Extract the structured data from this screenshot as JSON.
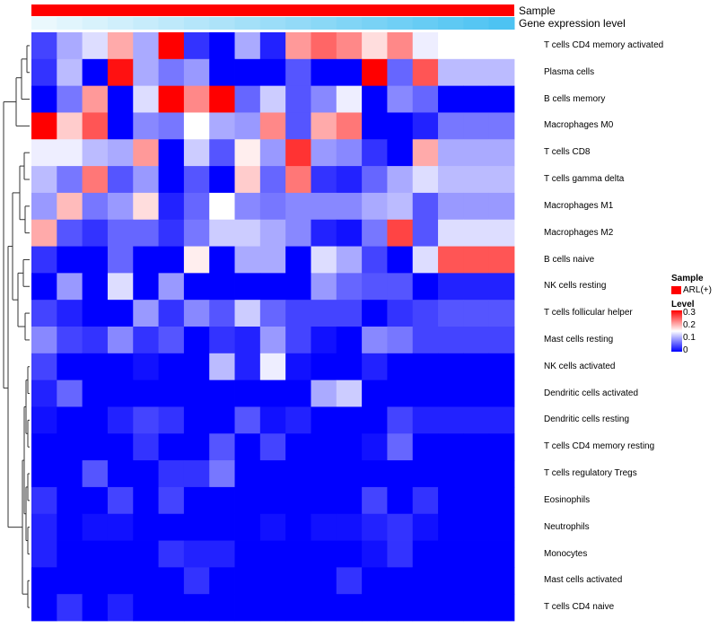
{
  "chart_data": {
    "type": "heatmap",
    "title": "",
    "annotations": [
      {
        "name": "Sample",
        "colors": [
          "#ff0000"
        ]
      },
      {
        "name": "Gene expression level",
        "colors": [
          "#ffffff",
          "#4dc3f2"
        ]
      }
    ],
    "rows": [
      "T cells CD4 memory activated",
      "Plasma cells",
      "B cells memory",
      "Macrophages M0",
      "T cells CD8",
      "T cells gamma delta",
      "Macrophages M1",
      "Macrophages M2",
      "B cells naive",
      "NK cells resting",
      "T cells follicular helper",
      "Mast cells resting",
      "NK cells activated",
      "Dendritic cells activated",
      "Dendritic cells resting",
      "T cells CD4 memory resting",
      "T cells regulatory  Tregs",
      "Eosinophils",
      "Neutrophils",
      "Monocytes",
      "Mast cells activated",
      "T cells CD4 naive"
    ],
    "n_columns": 19,
    "values": [
      [
        0.04,
        0.1,
        0.13,
        0.2,
        0.1,
        0.3,
        0.03,
        0.0,
        0.1,
        0.02,
        0.21,
        0.24,
        0.22,
        0.17,
        0.22,
        0.14,
        0.15,
        0.15,
        0.15
      ],
      [
        0.03,
        0.11,
        0.0,
        0.29,
        0.1,
        0.07,
        0.09,
        0.0,
        0.0,
        0.0,
        0.05,
        0.0,
        0.0,
        0.3,
        0.06,
        0.25,
        0.11,
        0.11,
        0.11
      ],
      [
        0.0,
        0.07,
        0.21,
        0.0,
        0.13,
        0.3,
        0.22,
        0.3,
        0.06,
        0.12,
        0.05,
        0.08,
        0.14,
        0.0,
        0.08,
        0.06,
        0.0,
        0.0,
        0.0
      ],
      [
        0.3,
        0.18,
        0.25,
        0.0,
        0.08,
        0.07,
        0.15,
        0.1,
        0.09,
        0.22,
        0.05,
        0.2,
        0.23,
        0.0,
        0.0,
        0.02,
        0.07,
        0.07,
        0.07
      ],
      [
        0.14,
        0.14,
        0.11,
        0.1,
        0.21,
        0.0,
        0.12,
        0.05,
        0.16,
        0.09,
        0.27,
        0.09,
        0.08,
        0.03,
        0.0,
        0.2,
        0.1,
        0.1,
        0.1
      ],
      [
        0.11,
        0.07,
        0.23,
        0.05,
        0.09,
        0.0,
        0.05,
        0.0,
        0.18,
        0.06,
        0.23,
        0.03,
        0.02,
        0.06,
        0.1,
        0.13,
        0.11,
        0.11,
        0.11
      ],
      [
        0.09,
        0.19,
        0.07,
        0.09,
        0.17,
        0.02,
        0.06,
        0.15,
        0.08,
        0.07,
        0.08,
        0.08,
        0.08,
        0.1,
        0.11,
        0.05,
        0.09,
        0.09,
        0.09
      ],
      [
        0.2,
        0.05,
        0.03,
        0.06,
        0.06,
        0.03,
        0.07,
        0.12,
        0.12,
        0.1,
        0.08,
        0.02,
        0.01,
        0.07,
        0.26,
        0.05,
        0.13,
        0.13,
        0.13
      ],
      [
        0.03,
        0.0,
        0.0,
        0.06,
        0.0,
        0.0,
        0.16,
        0.0,
        0.1,
        0.1,
        0.0,
        0.13,
        0.1,
        0.04,
        0.0,
        0.13,
        0.25,
        0.25,
        0.25
      ],
      [
        0.0,
        0.09,
        0.0,
        0.13,
        0.0,
        0.09,
        0.0,
        0.0,
        0.0,
        0.0,
        0.0,
        0.09,
        0.06,
        0.05,
        0.05,
        0.0,
        0.02,
        0.02,
        0.02
      ],
      [
        0.04,
        0.02,
        0.0,
        0.0,
        0.09,
        0.03,
        0.08,
        0.05,
        0.12,
        0.06,
        0.04,
        0.04,
        0.04,
        0.0,
        0.03,
        0.04,
        0.05,
        0.05,
        0.05
      ],
      [
        0.08,
        0.04,
        0.03,
        0.08,
        0.03,
        0.05,
        0.0,
        0.03,
        0.02,
        0.09,
        0.04,
        0.01,
        0.0,
        0.08,
        0.07,
        0.04,
        0.04,
        0.04,
        0.04
      ],
      [
        0.04,
        0.0,
        0.0,
        0.0,
        0.01,
        0.0,
        0.0,
        0.11,
        0.02,
        0.14,
        0.01,
        0.0,
        0.0,
        0.02,
        0.0,
        0.0,
        0.0,
        0.0,
        0.0
      ],
      [
        0.02,
        0.06,
        0.0,
        0.0,
        0.0,
        0.0,
        0.0,
        0.0,
        0.0,
        0.0,
        0.0,
        0.1,
        0.12,
        0.0,
        0.0,
        0.0,
        0.0,
        0.0,
        0.0
      ],
      [
        0.01,
        0.0,
        0.0,
        0.02,
        0.04,
        0.03,
        0.0,
        0.0,
        0.05,
        0.01,
        0.02,
        0.0,
        0.0,
        0.0,
        0.04,
        0.02,
        0.02,
        0.02,
        0.02
      ],
      [
        0.0,
        0.0,
        0.0,
        0.0,
        0.03,
        0.0,
        0.0,
        0.05,
        0.0,
        0.04,
        0.0,
        0.0,
        0.0,
        0.01,
        0.06,
        0.0,
        0.0,
        0.0,
        0.0
      ],
      [
        0.0,
        0.0,
        0.05,
        0.0,
        0.0,
        0.03,
        0.03,
        0.07,
        0.0,
        0.0,
        0.0,
        0.0,
        0.0,
        0.0,
        0.0,
        0.0,
        0.0,
        0.0,
        0.0
      ],
      [
        0.03,
        0.0,
        0.0,
        0.04,
        0.0,
        0.04,
        0.0,
        0.0,
        0.0,
        0.0,
        0.0,
        0.0,
        0.0,
        0.04,
        0.0,
        0.03,
        0.0,
        0.0,
        0.0
      ],
      [
        0.02,
        0.0,
        0.01,
        0.01,
        0.0,
        0.0,
        0.0,
        0.0,
        0.0,
        0.01,
        0.0,
        0.01,
        0.01,
        0.02,
        0.03,
        0.01,
        0.0,
        0.0,
        0.0
      ],
      [
        0.02,
        0.0,
        0.0,
        0.0,
        0.0,
        0.03,
        0.02,
        0.02,
        0.0,
        0.0,
        0.0,
        0.0,
        0.0,
        0.01,
        0.03,
        0.0,
        0.0,
        0.0,
        0.0
      ],
      [
        0.0,
        0.0,
        0.0,
        0.0,
        0.0,
        0.0,
        0.03,
        0.0,
        0.0,
        0.0,
        0.0,
        0.0,
        0.03,
        0.0,
        0.0,
        0.0,
        0.0,
        0.0,
        0.0
      ],
      [
        0.0,
        0.03,
        0.0,
        0.02,
        0.0,
        0.0,
        0.0,
        0.0,
        0.0,
        0.0,
        0.0,
        0.0,
        0.0,
        0.0,
        0.0,
        0.0,
        0.0,
        0.0,
        0.0
      ]
    ],
    "color_scale": {
      "min": 0,
      "max": 0.3,
      "colors": [
        "#0000ff",
        "#ffffff",
        "#ff0000"
      ]
    },
    "legend": {
      "position": "right",
      "sample": {
        "title": "Sample",
        "label": "ARL(+)",
        "color": "#ff0000"
      },
      "level": {
        "title": "Level",
        "ticks": [
          "0.3",
          "0.2",
          "0.1",
          "0"
        ]
      }
    },
    "dendrogram": "left"
  }
}
